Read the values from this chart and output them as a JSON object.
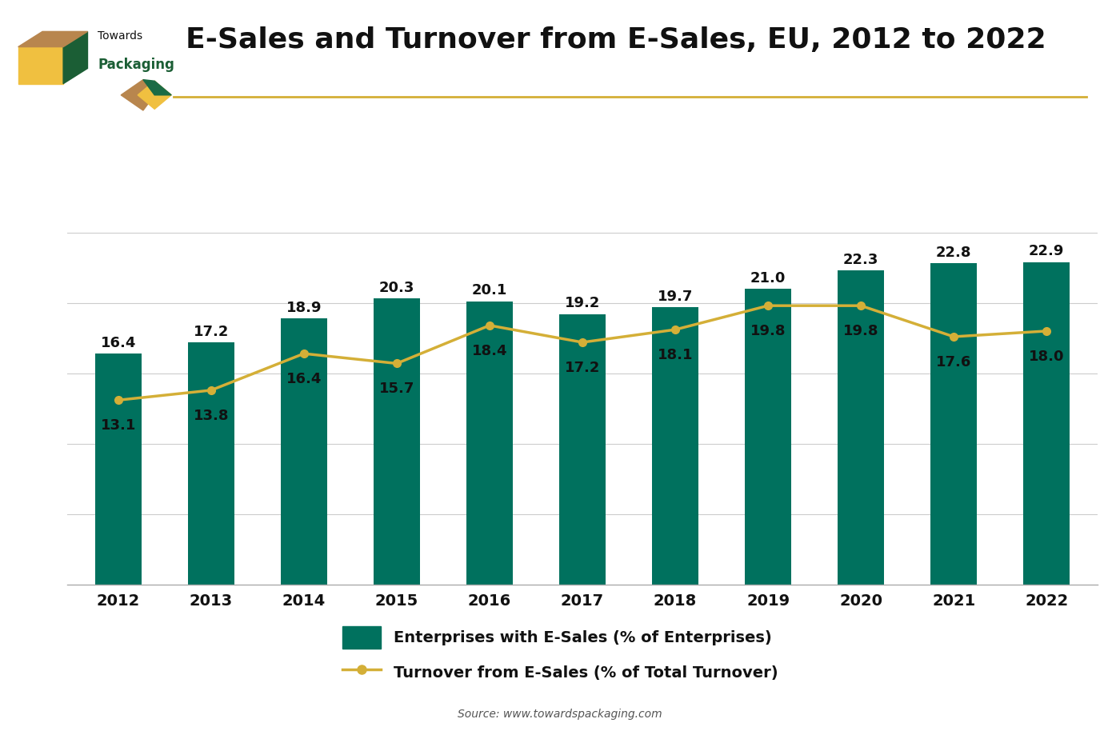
{
  "title": "E-Sales and Turnover from E-Sales, EU, 2012 to 2022",
  "years": [
    2012,
    2013,
    2014,
    2015,
    2016,
    2017,
    2018,
    2019,
    2020,
    2021,
    2022
  ],
  "bar_values": [
    16.4,
    17.2,
    18.9,
    20.3,
    20.1,
    19.2,
    19.7,
    21.0,
    22.3,
    22.8,
    22.9
  ],
  "line_values": [
    13.1,
    13.8,
    16.4,
    15.7,
    18.4,
    17.2,
    18.1,
    19.8,
    19.8,
    17.6,
    18.0
  ],
  "bar_color": "#00715E",
  "line_color": "#D4AF37",
  "bar_label": "Enterprises with E-Sales (% of Enterprises)",
  "line_label": "Turnover from E-Sales (% of Total Turnover)",
  "source_text": "Source: www.towardspackaging.com",
  "background_color": "#FFFFFF",
  "plot_bg_color": "#FFFFFF",
  "title_fontsize": 26,
  "label_fontsize": 14,
  "tick_fontsize": 14,
  "annotation_fontsize": 13,
  "ylim": [
    0,
    28
  ],
  "title_color": "#111111",
  "gold_line_color": "#D4AF37",
  "logo_brown": "#B8864E",
  "logo_gold": "#F0C040",
  "logo_green": "#1B6B45",
  "logo_dark_green": "#1B5E35"
}
